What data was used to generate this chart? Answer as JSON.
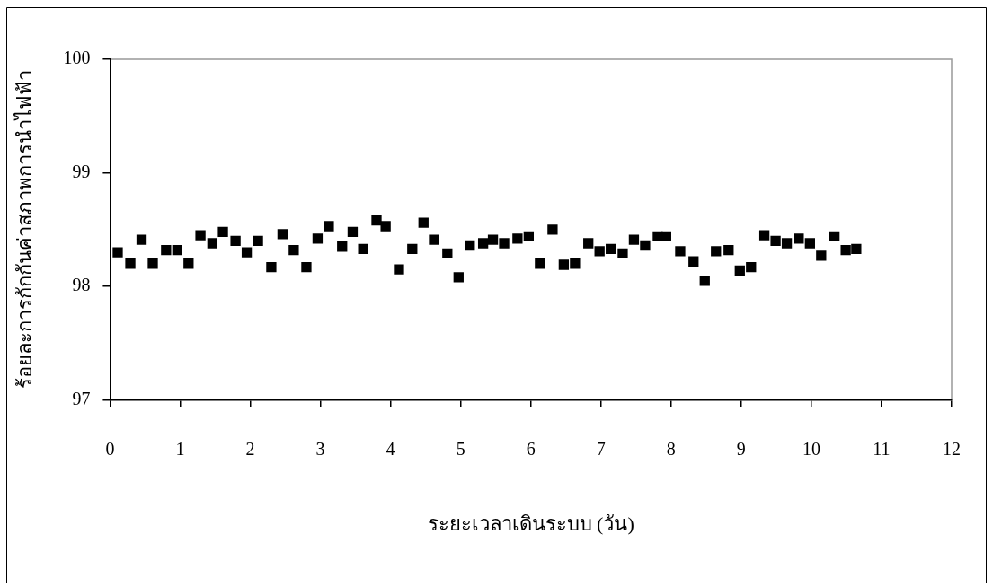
{
  "chart_data": {
    "type": "scatter",
    "xlabel": "ระยะเวลาเดินระบบ (วัน)",
    "ylabel": "ร้อยละการกักกันค่าสภาพการนำไฟฟ้า",
    "x": [
      0.11,
      0.29,
      0.45,
      0.61,
      0.8,
      0.96,
      1.12,
      1.29,
      1.46,
      1.61,
      1.79,
      1.95,
      2.11,
      2.3,
      2.46,
      2.62,
      2.8,
      2.96,
      3.12,
      3.31,
      3.46,
      3.61,
      3.8,
      3.93,
      4.12,
      4.31,
      4.47,
      4.62,
      4.81,
      4.97,
      5.13,
      5.32,
      5.46,
      5.62,
      5.81,
      5.97,
      6.13,
      6.31,
      6.47,
      6.63,
      6.82,
      6.98,
      7.14,
      7.31,
      7.47,
      7.63,
      7.81,
      7.93,
      8.13,
      8.32,
      8.48,
      8.64,
      8.82,
      8.98,
      9.14,
      9.33,
      9.49,
      9.65,
      9.82,
      9.98,
      10.14,
      10.33,
      10.49,
      10.64
    ],
    "values": [
      98.3,
      98.2,
      98.41,
      98.2,
      98.32,
      98.32,
      98.2,
      98.45,
      98.38,
      98.48,
      98.4,
      98.3,
      98.4,
      98.17,
      98.46,
      98.32,
      98.17,
      98.42,
      98.53,
      98.35,
      98.48,
      98.33,
      98.58,
      98.53,
      98.15,
      98.33,
      98.56,
      98.41,
      98.29,
      98.08,
      98.36,
      98.38,
      98.41,
      98.38,
      98.42,
      98.44,
      98.2,
      98.5,
      98.19,
      98.2,
      98.38,
      98.31,
      98.33,
      98.29,
      98.41,
      98.36,
      98.44,
      98.44,
      98.31,
      98.22,
      98.05,
      98.31,
      98.32,
      98.14,
      98.17,
      98.45,
      98.4,
      98.38,
      98.42,
      98.38,
      98.27,
      98.44,
      98.32,
      98.33
    ],
    "color": "#000000",
    "marker": "square",
    "xlim": [
      0,
      12
    ],
    "xticks": [
      0,
      1,
      2,
      3,
      4,
      5,
      6,
      7,
      8,
      9,
      10,
      11,
      12
    ],
    "ylim": [
      97,
      100
    ],
    "yticks": [
      97,
      98,
      99,
      100
    ]
  }
}
